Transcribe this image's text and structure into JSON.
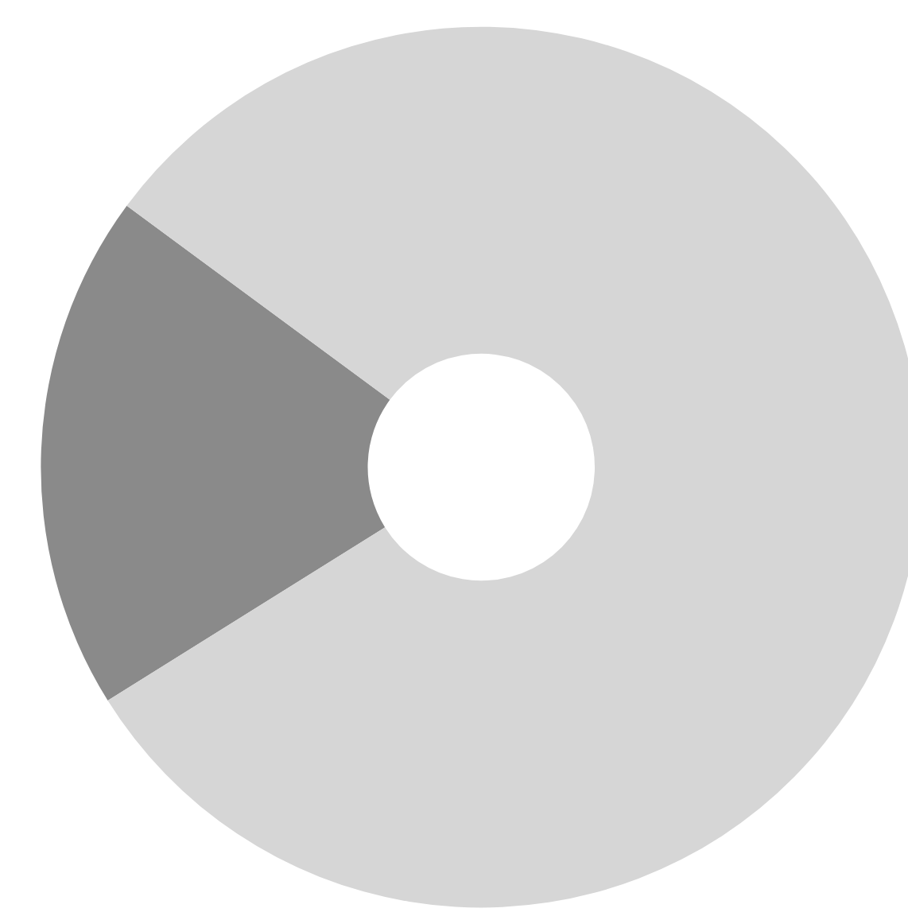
{
  "chart_data": {
    "type": "donut",
    "categories": [
      null,
      null
    ],
    "values": [
      19,
      81
    ],
    "colors": [
      "#8a8a8a",
      "#d6d6d6"
    ]
  }
}
